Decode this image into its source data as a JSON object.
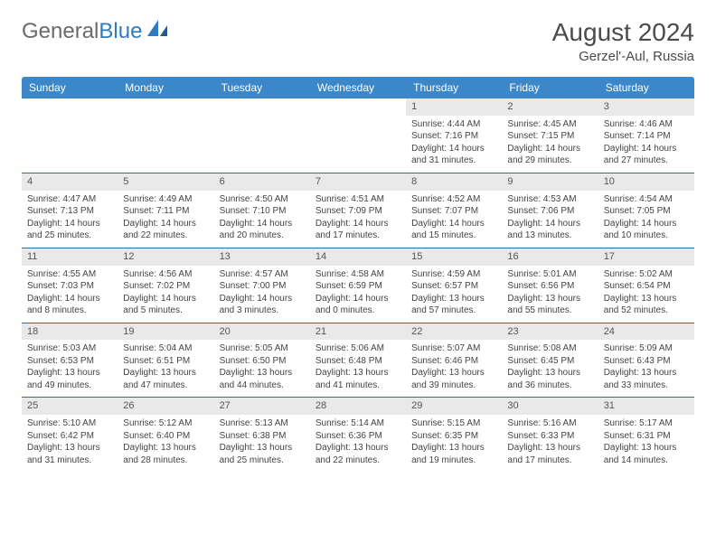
{
  "brand": {
    "part1": "General",
    "part2": "Blue"
  },
  "title": "August 2024",
  "location": "Gerzel'-Aul, Russia",
  "colors": {
    "header_bg": "#3c87c7",
    "header_text": "#ffffff",
    "daynum_bg": "#e9e9e9",
    "row_divider": "#2f6aa0",
    "logo_gray": "#6a6a6a",
    "logo_blue": "#2f7abf"
  },
  "weekdays": [
    "Sunday",
    "Monday",
    "Tuesday",
    "Wednesday",
    "Thursday",
    "Friday",
    "Saturday"
  ],
  "weeks": [
    [
      {
        "empty": true
      },
      {
        "empty": true
      },
      {
        "empty": true
      },
      {
        "empty": true
      },
      {
        "n": "1",
        "sr": "4:44 AM",
        "ss": "7:16 PM",
        "dl": "14 hours and 31 minutes."
      },
      {
        "n": "2",
        "sr": "4:45 AM",
        "ss": "7:15 PM",
        "dl": "14 hours and 29 minutes."
      },
      {
        "n": "3",
        "sr": "4:46 AM",
        "ss": "7:14 PM",
        "dl": "14 hours and 27 minutes."
      }
    ],
    [
      {
        "n": "4",
        "sr": "4:47 AM",
        "ss": "7:13 PM",
        "dl": "14 hours and 25 minutes."
      },
      {
        "n": "5",
        "sr": "4:49 AM",
        "ss": "7:11 PM",
        "dl": "14 hours and 22 minutes."
      },
      {
        "n": "6",
        "sr": "4:50 AM",
        "ss": "7:10 PM",
        "dl": "14 hours and 20 minutes."
      },
      {
        "n": "7",
        "sr": "4:51 AM",
        "ss": "7:09 PM",
        "dl": "14 hours and 17 minutes."
      },
      {
        "n": "8",
        "sr": "4:52 AM",
        "ss": "7:07 PM",
        "dl": "14 hours and 15 minutes."
      },
      {
        "n": "9",
        "sr": "4:53 AM",
        "ss": "7:06 PM",
        "dl": "14 hours and 13 minutes."
      },
      {
        "n": "10",
        "sr": "4:54 AM",
        "ss": "7:05 PM",
        "dl": "14 hours and 10 minutes."
      }
    ],
    [
      {
        "n": "11",
        "sr": "4:55 AM",
        "ss": "7:03 PM",
        "dl": "14 hours and 8 minutes."
      },
      {
        "n": "12",
        "sr": "4:56 AM",
        "ss": "7:02 PM",
        "dl": "14 hours and 5 minutes."
      },
      {
        "n": "13",
        "sr": "4:57 AM",
        "ss": "7:00 PM",
        "dl": "14 hours and 3 minutes."
      },
      {
        "n": "14",
        "sr": "4:58 AM",
        "ss": "6:59 PM",
        "dl": "14 hours and 0 minutes."
      },
      {
        "n": "15",
        "sr": "4:59 AM",
        "ss": "6:57 PM",
        "dl": "13 hours and 57 minutes."
      },
      {
        "n": "16",
        "sr": "5:01 AM",
        "ss": "6:56 PM",
        "dl": "13 hours and 55 minutes."
      },
      {
        "n": "17",
        "sr": "5:02 AM",
        "ss": "6:54 PM",
        "dl": "13 hours and 52 minutes."
      }
    ],
    [
      {
        "n": "18",
        "sr": "5:03 AM",
        "ss": "6:53 PM",
        "dl": "13 hours and 49 minutes."
      },
      {
        "n": "19",
        "sr": "5:04 AM",
        "ss": "6:51 PM",
        "dl": "13 hours and 47 minutes."
      },
      {
        "n": "20",
        "sr": "5:05 AM",
        "ss": "6:50 PM",
        "dl": "13 hours and 44 minutes."
      },
      {
        "n": "21",
        "sr": "5:06 AM",
        "ss": "6:48 PM",
        "dl": "13 hours and 41 minutes."
      },
      {
        "n": "22",
        "sr": "5:07 AM",
        "ss": "6:46 PM",
        "dl": "13 hours and 39 minutes."
      },
      {
        "n": "23",
        "sr": "5:08 AM",
        "ss": "6:45 PM",
        "dl": "13 hours and 36 minutes."
      },
      {
        "n": "24",
        "sr": "5:09 AM",
        "ss": "6:43 PM",
        "dl": "13 hours and 33 minutes."
      }
    ],
    [
      {
        "n": "25",
        "sr": "5:10 AM",
        "ss": "6:42 PM",
        "dl": "13 hours and 31 minutes."
      },
      {
        "n": "26",
        "sr": "5:12 AM",
        "ss": "6:40 PM",
        "dl": "13 hours and 28 minutes."
      },
      {
        "n": "27",
        "sr": "5:13 AM",
        "ss": "6:38 PM",
        "dl": "13 hours and 25 minutes."
      },
      {
        "n": "28",
        "sr": "5:14 AM",
        "ss": "6:36 PM",
        "dl": "13 hours and 22 minutes."
      },
      {
        "n": "29",
        "sr": "5:15 AM",
        "ss": "6:35 PM",
        "dl": "13 hours and 19 minutes."
      },
      {
        "n": "30",
        "sr": "5:16 AM",
        "ss": "6:33 PM",
        "dl": "13 hours and 17 minutes."
      },
      {
        "n": "31",
        "sr": "5:17 AM",
        "ss": "6:31 PM",
        "dl": "13 hours and 14 minutes."
      }
    ]
  ],
  "labels": {
    "sunrise": "Sunrise:",
    "sunset": "Sunset:",
    "daylight": "Daylight:"
  }
}
